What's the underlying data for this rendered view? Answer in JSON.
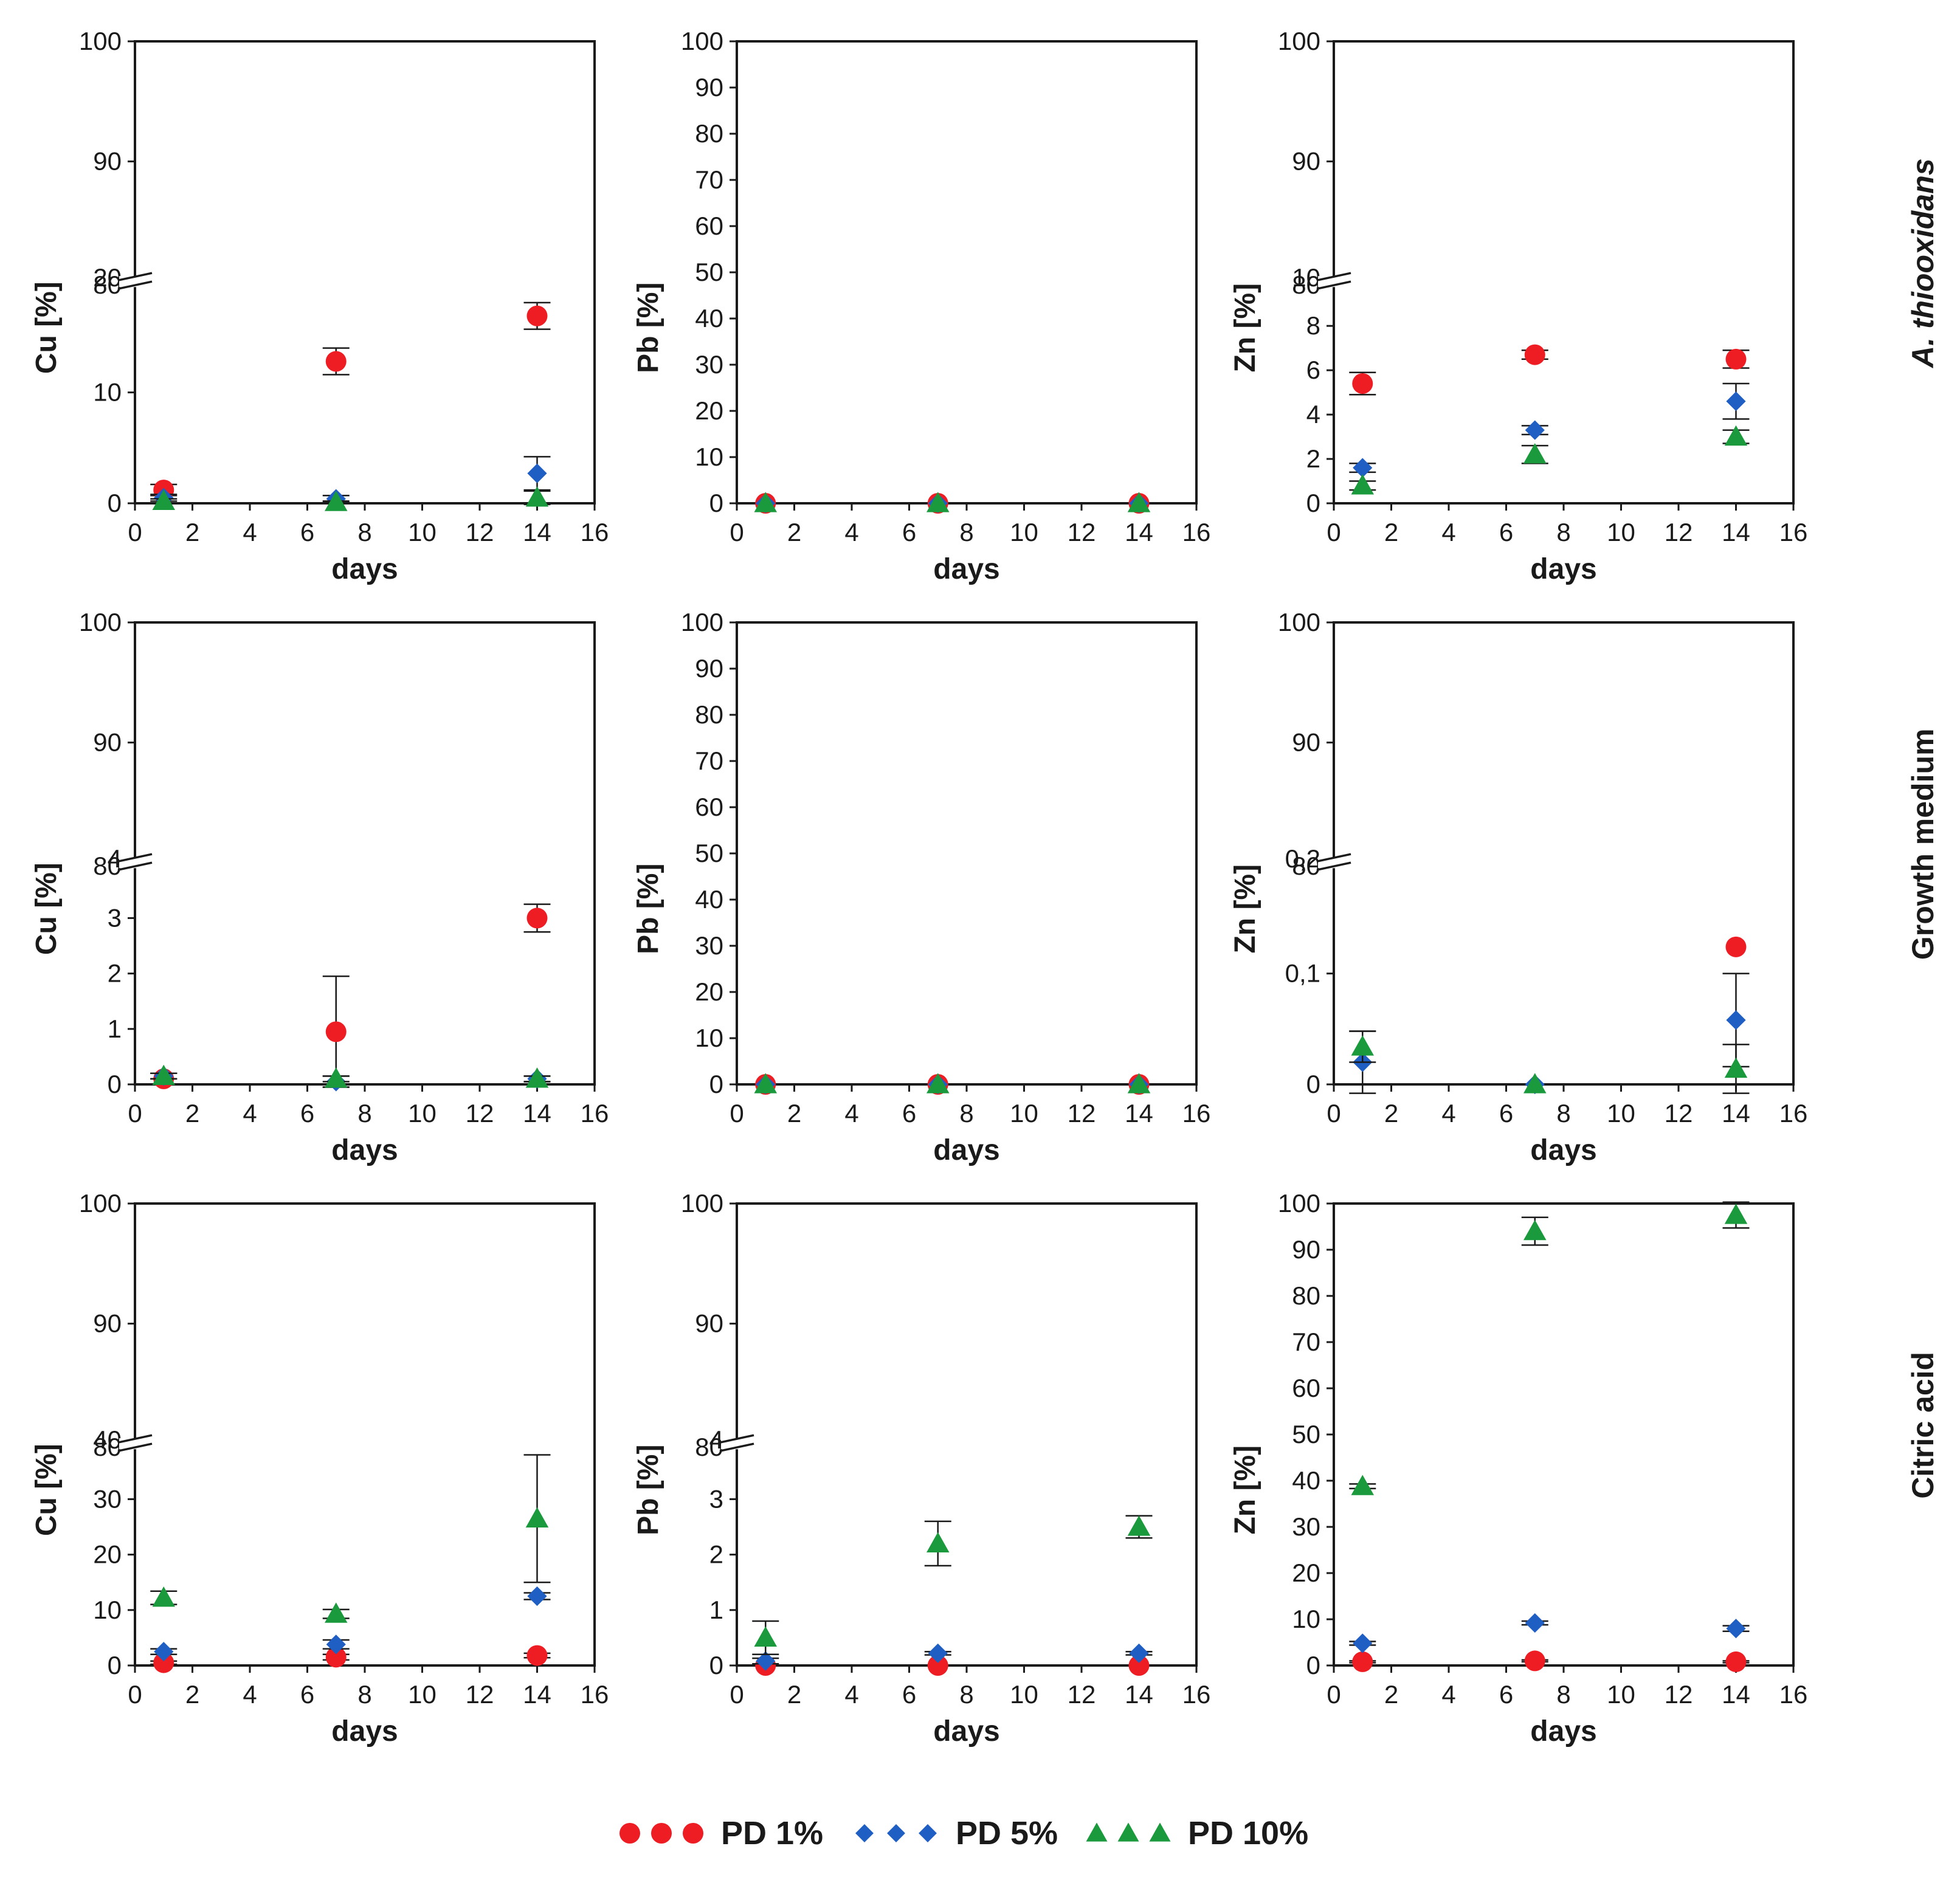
{
  "colors": {
    "PD 1%": "#ee1c23",
    "PD 5%": "#1f5fc4",
    "PD 10%": "#1a9a3c",
    "axis": "#1a1a1a"
  },
  "row_labels": [
    "A. thiooxidans",
    "Growth medium",
    "Citric acid"
  ],
  "legend": [
    {
      "name": "PD 1%",
      "marker": "circle"
    },
    {
      "name": "PD 5%",
      "marker": "diamond"
    },
    {
      "name": "PD 10%",
      "marker": "triangle"
    }
  ],
  "chart_data": [
    {
      "type": "scatter",
      "row": 0,
      "col": 0,
      "xlabel": "days",
      "ylabel": "Cu [%]",
      "xlim": [
        0,
        16
      ],
      "xticks": [
        "0",
        "2",
        "4",
        "6",
        "8",
        "10",
        "12",
        "14",
        "16"
      ],
      "broken_axis": true,
      "lower": {
        "ylim": [
          0,
          20
        ],
        "ticks": [
          "0",
          "10",
          "20"
        ]
      },
      "upper": {
        "ylim": [
          80,
          100
        ],
        "ticks": [
          "80",
          "90",
          "100"
        ]
      },
      "x": [
        1,
        7,
        14
      ],
      "series": [
        {
          "name": "PD 1%",
          "values": [
            1.2,
            12.8,
            16.9
          ],
          "errors": [
            0.5,
            1.2,
            1.2
          ]
        },
        {
          "name": "PD 5%",
          "values": [
            0.5,
            0.4,
            2.7
          ],
          "errors": [
            0.3,
            0.3,
            1.5
          ]
        },
        {
          "name": "PD 10%",
          "values": [
            0.2,
            0.1,
            0.5
          ],
          "errors": [
            0.2,
            0.1,
            0.6
          ]
        }
      ]
    },
    {
      "type": "scatter",
      "row": 0,
      "col": 1,
      "xlabel": "days",
      "ylabel": "Pb [%]",
      "xlim": [
        0,
        16
      ],
      "xticks": [
        "0",
        "2",
        "4",
        "6",
        "8",
        "10",
        "12",
        "14",
        "16"
      ],
      "broken_axis": false,
      "ylim": [
        0,
        100
      ],
      "yticks": [
        "0",
        "10",
        "20",
        "30",
        "40",
        "50",
        "60",
        "70",
        "80",
        "90",
        "100"
      ],
      "x": [
        1,
        7,
        14
      ],
      "series": [
        {
          "name": "PD 1%",
          "values": [
            0,
            0,
            0
          ],
          "errors": [
            0,
            0,
            0
          ]
        },
        {
          "name": "PD 5%",
          "values": [
            0,
            0,
            0
          ],
          "errors": [
            0,
            0,
            0
          ]
        },
        {
          "name": "PD 10%",
          "values": [
            0,
            0,
            0
          ],
          "errors": [
            0,
            0,
            0
          ]
        }
      ]
    },
    {
      "type": "scatter",
      "row": 0,
      "col": 2,
      "xlabel": "days",
      "ylabel": "Zn [%]",
      "xlim": [
        0,
        16
      ],
      "xticks": [
        "0",
        "2",
        "4",
        "6",
        "8",
        "10",
        "12",
        "14",
        "16"
      ],
      "broken_axis": true,
      "lower": {
        "ylim": [
          0,
          10
        ],
        "ticks": [
          "0",
          "2",
          "4",
          "6",
          "8",
          "10"
        ]
      },
      "upper": {
        "ylim": [
          80,
          100
        ],
        "ticks": [
          "80",
          "90",
          "100"
        ]
      },
      "x": [
        1,
        7,
        14
      ],
      "series": [
        {
          "name": "PD 1%",
          "values": [
            5.4,
            6.7,
            6.5
          ],
          "errors": [
            0.5,
            0.2,
            0.4
          ]
        },
        {
          "name": "PD 5%",
          "values": [
            1.6,
            3.3,
            4.6
          ],
          "errors": [
            0.2,
            0.2,
            0.8
          ]
        },
        {
          "name": "PD 10%",
          "values": [
            0.8,
            2.2,
            3.0
          ],
          "errors": [
            0.2,
            0.4,
            0.3
          ]
        }
      ]
    },
    {
      "type": "scatter",
      "row": 1,
      "col": 0,
      "xlabel": "days",
      "ylabel": "Cu [%]",
      "xlim": [
        0,
        16
      ],
      "xticks": [
        "0",
        "2",
        "4",
        "6",
        "8",
        "10",
        "12",
        "14",
        "16"
      ],
      "broken_axis": true,
      "lower": {
        "ylim": [
          0,
          4
        ],
        "ticks": [
          "0",
          "1",
          "2",
          "3",
          "4"
        ]
      },
      "upper": {
        "ylim": [
          80,
          100
        ],
        "ticks": [
          "80",
          "90",
          "100"
        ]
      },
      "x": [
        1,
        7,
        14
      ],
      "series": [
        {
          "name": "PD 1%",
          "values": [
            0.1,
            0.95,
            3.0
          ],
          "errors": [
            0.1,
            1.0,
            0.25
          ]
        },
        {
          "name": "PD 5%",
          "values": [
            0.15,
            0.05,
            0.1
          ],
          "errors": [
            0.05,
            0.1,
            0.05
          ]
        },
        {
          "name": "PD 10%",
          "values": [
            0.15,
            0.1,
            0.1
          ],
          "errors": [
            0.05,
            0.05,
            0.05
          ]
        }
      ]
    },
    {
      "type": "scatter",
      "row": 1,
      "col": 1,
      "xlabel": "days",
      "ylabel": "Pb [%]",
      "xlim": [
        0,
        16
      ],
      "xticks": [
        "0",
        "2",
        "4",
        "6",
        "8",
        "10",
        "12",
        "14",
        "16"
      ],
      "broken_axis": false,
      "ylim": [
        0,
        100
      ],
      "yticks": [
        "0",
        "10",
        "20",
        "30",
        "40",
        "50",
        "60",
        "70",
        "80",
        "90",
        "100"
      ],
      "x": [
        1,
        7,
        14
      ],
      "series": [
        {
          "name": "PD 1%",
          "values": [
            0,
            0,
            0
          ],
          "errors": [
            0,
            0,
            0
          ]
        },
        {
          "name": "PD 5%",
          "values": [
            0,
            0,
            0
          ],
          "errors": [
            0,
            0,
            0
          ]
        },
        {
          "name": "PD 10%",
          "values": [
            0,
            0,
            0
          ],
          "errors": [
            0,
            0,
            0
          ]
        }
      ]
    },
    {
      "type": "scatter",
      "row": 1,
      "col": 2,
      "xlabel": "days",
      "ylabel": "Zn [%]",
      "xlim": [
        0,
        16
      ],
      "xticks": [
        "0",
        "2",
        "4",
        "6",
        "8",
        "10",
        "12",
        "14",
        "16"
      ],
      "broken_axis": true,
      "lower": {
        "ylim": [
          0,
          0.2
        ],
        "ticks": [
          "0",
          "0,1",
          "0,2"
        ]
      },
      "upper": {
        "ylim": [
          80,
          100
        ],
        "ticks": [
          "80",
          "90",
          "100"
        ]
      },
      "x": [
        1,
        7,
        14
      ],
      "series": [
        {
          "name": "PD 1%",
          "values": [
            null,
            null,
            0.124
          ],
          "errors": [
            0,
            0,
            0
          ]
        },
        {
          "name": "PD 5%",
          "values": [
            0.02,
            0.0,
            0.058
          ],
          "errors": [
            0.028,
            0,
            0.042
          ]
        },
        {
          "name": "PD 10%",
          "values": [
            0.034,
            0.0,
            0.014
          ],
          "errors": [
            0.014,
            0,
            0.022
          ]
        }
      ]
    },
    {
      "type": "scatter",
      "row": 2,
      "col": 0,
      "xlabel": "days",
      "ylabel": "Cu [%]",
      "xlim": [
        0,
        16
      ],
      "xticks": [
        "0",
        "2",
        "4",
        "6",
        "8",
        "10",
        "12",
        "14",
        "16"
      ],
      "broken_axis": true,
      "lower": {
        "ylim": [
          0,
          40
        ],
        "ticks": [
          "0",
          "10",
          "20",
          "30",
          "40"
        ]
      },
      "upper": {
        "ylim": [
          80,
          100
        ],
        "ticks": [
          "80",
          "90",
          "100"
        ]
      },
      "x": [
        1,
        7,
        14
      ],
      "series": [
        {
          "name": "PD 1%",
          "values": [
            0.5,
            1.5,
            1.8
          ],
          "errors": [
            0.3,
            0.5,
            0.4
          ]
        },
        {
          "name": "PD 5%",
          "values": [
            2.5,
            3.8,
            12.5
          ],
          "errors": [
            0.5,
            0.8,
            0.6
          ]
        },
        {
          "name": "PD 10%",
          "values": [
            12.2,
            9.3,
            26.5
          ],
          "errors": [
            1.2,
            0.8,
            11.5
          ]
        }
      ]
    },
    {
      "type": "scatter",
      "row": 2,
      "col": 1,
      "xlabel": "days",
      "ylabel": "Pb [%]",
      "xlim": [
        0,
        16
      ],
      "xticks": [
        "0",
        "2",
        "4",
        "6",
        "8",
        "10",
        "12",
        "14",
        "16"
      ],
      "broken_axis": true,
      "lower": {
        "ylim": [
          0,
          4
        ],
        "ticks": [
          "0",
          "1",
          "2",
          "3",
          "4"
        ]
      },
      "upper": {
        "ylim": [
          80,
          100
        ],
        "ticks": [
          "80",
          "90",
          "100"
        ]
      },
      "x": [
        1,
        7,
        14
      ],
      "series": [
        {
          "name": "PD 1%",
          "values": [
            0,
            0,
            0
          ],
          "errors": [
            0,
            0,
            0
          ]
        },
        {
          "name": "PD 5%",
          "values": [
            0.08,
            0.22,
            0.22
          ],
          "errors": [
            0.05,
            0.03,
            0.03
          ]
        },
        {
          "name": "PD 10%",
          "values": [
            0.5,
            2.2,
            2.5
          ],
          "errors": [
            0.3,
            0.4,
            0.2
          ]
        }
      ]
    },
    {
      "type": "scatter",
      "row": 2,
      "col": 2,
      "xlabel": "days",
      "ylabel": "Zn [%]",
      "xlim": [
        0,
        16
      ],
      "xticks": [
        "0",
        "2",
        "4",
        "6",
        "8",
        "10",
        "12",
        "14",
        "16"
      ],
      "broken_axis": false,
      "ylim": [
        0,
        100
      ],
      "yticks": [
        "0",
        "10",
        "20",
        "30",
        "40",
        "50",
        "60",
        "70",
        "80",
        "90",
        "100"
      ],
      "x": [
        1,
        7,
        14
      ],
      "series": [
        {
          "name": "PD 1%",
          "values": [
            0.8,
            1.0,
            0.8
          ],
          "errors": [
            0.2,
            0.2,
            0.2
          ]
        },
        {
          "name": "PD 5%",
          "values": [
            4.8,
            9.2,
            8.0
          ],
          "errors": [
            0.4,
            0.4,
            0.6
          ]
        },
        {
          "name": "PD 10%",
          "values": [
            38.8,
            94.0,
            97.5
          ],
          "errors": [
            0.5,
            3.0,
            2.8
          ]
        }
      ]
    }
  ]
}
